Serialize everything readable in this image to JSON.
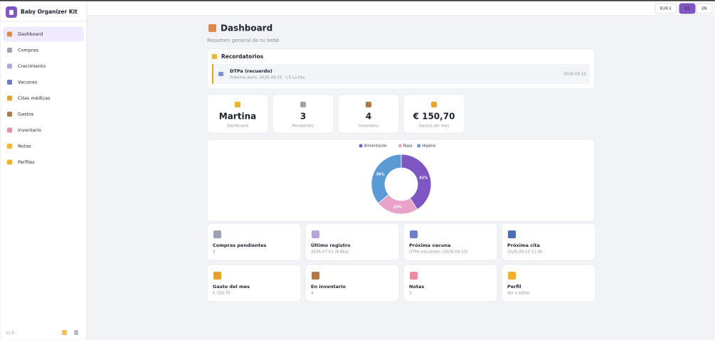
{
  "sidebar": {
    "brand": "Baby Organizer Kit",
    "nav": [
      "Dashboard",
      "Compras",
      "Crecimiento",
      "Vacunas",
      "Citas médicas",
      "Gastos",
      "Inventario",
      "Notas",
      "Perfiles"
    ],
    "version": "v1.0"
  },
  "topbar": {
    "currency": "EUR €",
    "languages": [
      "ES",
      "EN"
    ]
  },
  "header": {
    "title": "Dashboard",
    "subtitle": "Resumen general de tu bebé"
  },
  "reminders": {
    "title": "Recordatorios",
    "items": [
      {
        "title": "DTPa (recuerdo)",
        "detail": "Próxima dosis: 2026-09-15 · CS La Paz",
        "date": "2026-09-15"
      }
    ]
  },
  "stats": [
    {
      "value": "Martina",
      "label": "Dashboard"
    },
    {
      "value": "3",
      "label": "Pendientes"
    },
    {
      "value": "4",
      "label": "Inventario"
    },
    {
      "value": "€ 150,70",
      "label": "Gastos del mes"
    }
  ],
  "chart_data": {
    "type": "pie",
    "categories": [
      "Alimentación",
      "Ropa",
      "Higiene"
    ],
    "values": [
      41,
      23,
      36
    ],
    "value_labels": [
      "41%",
      "23%",
      "36%"
    ],
    "colors": [
      "#7e57c2",
      "#e9a3c9",
      "#5b9bd5"
    ],
    "legend": "top"
  },
  "cards": [
    {
      "title": "Compras pendientes",
      "detail": "3"
    },
    {
      "title": "Último registro",
      "detail": "2026-07-01 (8.8kg)"
    },
    {
      "title": "Próxima vacuna",
      "detail": "DTPa (recuerdo) (2026-09-15)"
    },
    {
      "title": "Próxima cita",
      "detail": "2026-09-10 11:00"
    },
    {
      "title": "Gasto del mes",
      "detail": "€ 150,70"
    },
    {
      "title": "En inventario",
      "detail": "4"
    },
    {
      "title": "Notas",
      "detail": "3"
    },
    {
      "title": "Perfil",
      "detail": "Ver y editar"
    }
  ]
}
